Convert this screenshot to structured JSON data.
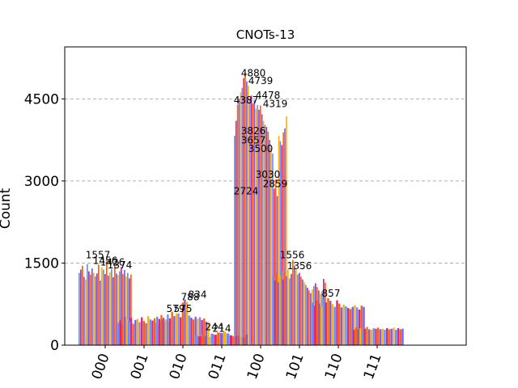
{
  "chart_data": {
    "type": "bar",
    "title": "CNOTs-13",
    "xlabel": "",
    "ylabel": "Count",
    "ylim": [
      0,
      5450
    ],
    "yticks": [
      0,
      1500,
      3000,
      4500
    ],
    "ytick_labels": [
      "0",
      "1500",
      "3000",
      "4500"
    ],
    "grid": "y-dashed",
    "categories": [
      "000",
      "001",
      "010",
      "011",
      "100",
      "101",
      "110",
      "111"
    ],
    "colors": [
      "#648fff",
      "#dc267f",
      "#fe6100",
      "#785ef0",
      "#ffb000"
    ],
    "series_values": [
      [
        1320,
        1380,
        1450,
        1250,
        1200,
        1480,
        1350,
        1290,
        1400,
        1320,
        1260,
        1310,
        1470,
        1180,
        1420,
        1380,
        1300,
        1557,
        1270,
        1330,
        1390,
        1240,
        1456,
        1310,
        1280,
        1350,
        1426,
        1300,
        1374,
        1260,
        1320,
        1220,
        1290
      ],
      [
        410,
        450,
        380,
        520,
        470,
        430,
        500,
        390,
        460,
        480,
        420,
        510,
        440,
        400,
        530,
        470,
        450,
        490,
        410,
        380,
        440,
        470,
        420,
        460,
        430
      ],
      [
        520,
        480,
        550,
        500,
        470,
        560,
        490,
        610,
        530,
        575,
        579,
        510,
        780,
        834,
        788,
        540,
        500,
        470,
        520,
        480,
        510,
        460,
        490,
        430,
        410
      ],
      [
        180,
        160,
        200,
        170,
        150,
        210,
        190,
        230,
        220,
        244,
        214,
        180,
        160,
        170,
        150,
        140,
        190
      ],
      [
        3826,
        4100,
        4400,
        4500,
        4620,
        4700,
        4880,
        4980,
        4820,
        4739,
        4500,
        4560,
        4420,
        4478,
        4319,
        4387,
        4300,
        4378,
        4219,
        4096,
        4026,
        3987,
        3900,
        3750,
        3600,
        3500,
        2859,
        3030,
        2724,
        3822,
        3726,
        3657,
        3888,
        3959,
        4180
      ],
      [
        1250,
        1180,
        1300,
        1150,
        1280,
        1356,
        1200,
        1320,
        1260,
        1380,
        1220,
        1300,
        1556,
        1450,
        1380,
        1290,
        1320,
        1250,
        1200,
        1150,
        1100,
        1050,
        1000,
        950,
        1020,
        1080,
        1130,
        1060,
        1000,
        940,
        980,
        1210,
        1140
      ],
      [
        780,
        720,
        820,
        760,
        700,
        840,
        780,
        857,
        810,
        750,
        700,
        820,
        760,
        690,
        740,
        710,
        680,
        660,
        700,
        730,
        690,
        650,
        720,
        700
      ],
      [
        300,
        280,
        320,
        290,
        310,
        270,
        300,
        330,
        290,
        280,
        310,
        300,
        320,
        290,
        300,
        280,
        310,
        290,
        300,
        320,
        280,
        310,
        290,
        300
      ]
    ],
    "data_labels": [
      {
        "text": "1557",
        "cat": 0,
        "value": 1557
      },
      {
        "text": "1456",
        "cat": 0,
        "value": 1456
      },
      {
        "text": "1426",
        "cat": 0,
        "value": 1426
      },
      {
        "text": "1374",
        "cat": 0,
        "value": 1374
      },
      {
        "text": "579",
        "cat": 2,
        "value": 579
      },
      {
        "text": "575",
        "cat": 2,
        "value": 575
      },
      {
        "text": "788",
        "cat": 2,
        "value": 788
      },
      {
        "text": "834",
        "cat": 2,
        "value": 834
      },
      {
        "text": "244",
        "cat": 3,
        "value": 244
      },
      {
        "text": "214",
        "cat": 3,
        "value": 214
      },
      {
        "text": "4880",
        "cat": 4,
        "value": 4880
      },
      {
        "text": "4739",
        "cat": 4,
        "value": 4739
      },
      {
        "text": "4478",
        "cat": 4,
        "value": 4478
      },
      {
        "text": "4319",
        "cat": 4,
        "value": 4319
      },
      {
        "text": "4387",
        "cat": 4,
        "value": 4387
      },
      {
        "text": "3826",
        "cat": 4,
        "value": 3826
      },
      {
        "text": "3500",
        "cat": 4,
        "value": 3500
      },
      {
        "text": "3030",
        "cat": 4,
        "value": 3030
      },
      {
        "text": "2859",
        "cat": 4,
        "value": 2859
      },
      {
        "text": "2724",
        "cat": 4,
        "value": 2724
      },
      {
        "text": "3657",
        "cat": 4,
        "value": 3657
      },
      {
        "text": "1556",
        "cat": 5,
        "value": 1556
      },
      {
        "text": "1356",
        "cat": 5,
        "value": 1356
      },
      {
        "text": "857",
        "cat": 6,
        "value": 857
      }
    ]
  }
}
